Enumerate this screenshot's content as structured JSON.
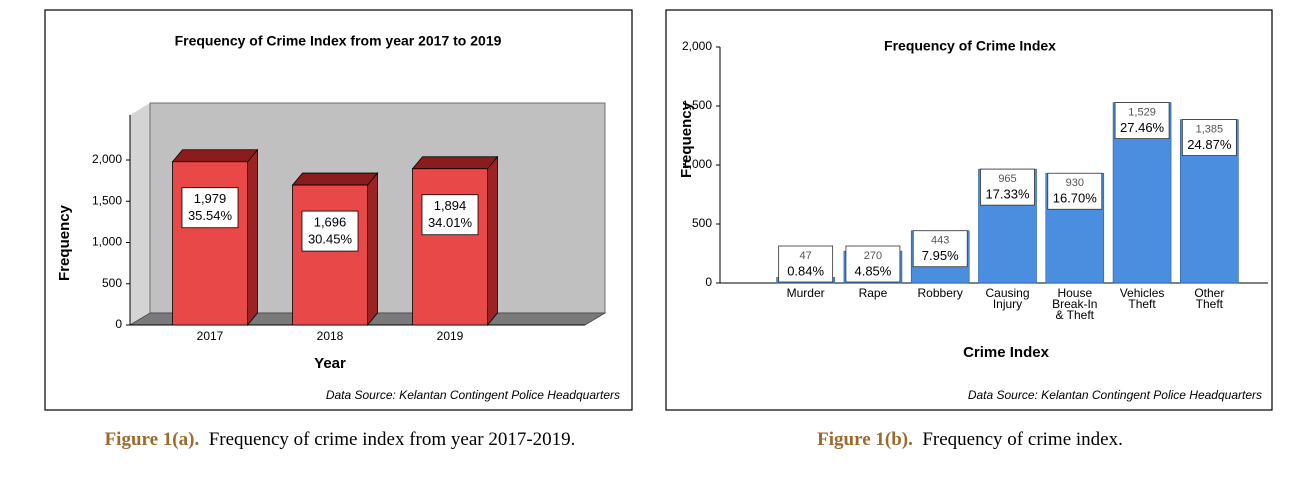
{
  "chart_data": [
    {
      "type": "bar",
      "three_d": true,
      "title": "Frequency of Crime Index from year 2017 to 2019",
      "categories": [
        "2017",
        "2018",
        "2019"
      ],
      "values": [
        1979,
        1696,
        1894
      ],
      "value_labels": [
        "1,979",
        "1,696",
        "1,894"
      ],
      "percent_labels": [
        "35.54%",
        "30.45%",
        "34.01%"
      ],
      "color": "#e84848",
      "ylim": [
        0,
        2000
      ],
      "yticks": [
        0,
        500,
        {
          "value": 1000,
          "label": "1,000"
        },
        {
          "value": 1500,
          "label": "1,500"
        },
        {
          "value": 2000,
          "label": "2,000"
        }
      ],
      "xlabel": "Year",
      "ylabel": "Frequency",
      "source": "Data Source: Kelantan Contingent Police Headquarters"
    },
    {
      "type": "bar",
      "three_d": false,
      "title": "Frequency of Crime Index",
      "categories": [
        "Murder",
        "Rape",
        "Robbery",
        "Causing\nInjury",
        "House\nBreak-In\n& Theft",
        "Vehicles\nTheft",
        "Other\nTheft"
      ],
      "values": [
        47,
        270,
        443,
        965,
        930,
        1529,
        1385
      ],
      "value_labels": [
        "47",
        "270",
        "443",
        "965",
        "930",
        "1,529",
        "1,385"
      ],
      "percent_labels": [
        "0.84%",
        "4.85%",
        "7.95%",
        "17.33%",
        "16.70%",
        "27.46%",
        "24.87%"
      ],
      "color": "#4a8ee0",
      "ylim": [
        0,
        2000
      ],
      "yticks": [
        0,
        500,
        {
          "value": 1000,
          "label": "1,000"
        },
        {
          "value": 1500,
          "label": "1,500"
        },
        {
          "value": 2000,
          "label": "2,000"
        }
      ],
      "xlabel": "Crime Index",
      "ylabel": "Frequency",
      "source": "Data Source: Kelantan Contingent Police Headquarters"
    }
  ],
  "captions": [
    {
      "label": "Figure 1(a).",
      "text": "Frequency of crime index from year 2017-2019."
    },
    {
      "label": "Figure 1(b).",
      "text": "Frequency of crime index."
    }
  ]
}
